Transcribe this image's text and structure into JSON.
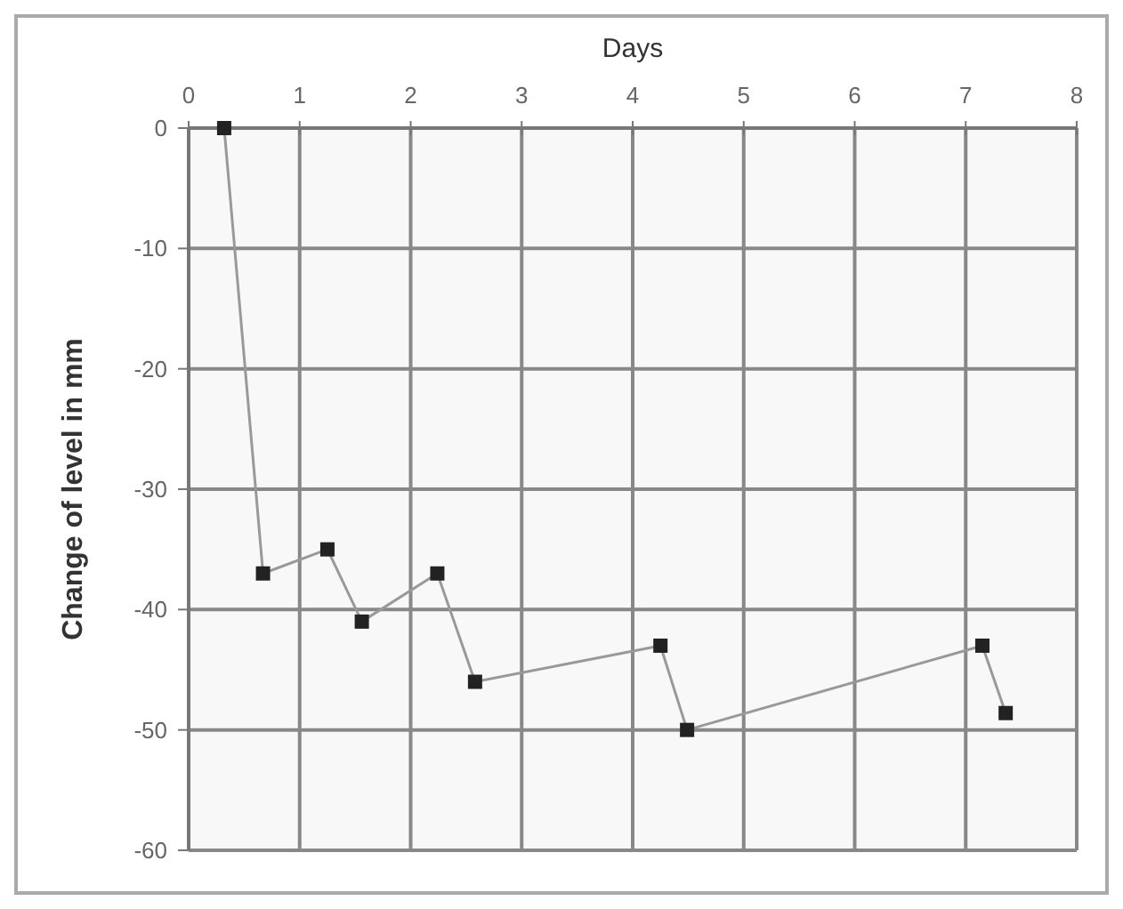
{
  "chart_data": {
    "type": "line",
    "xlabel": "Days",
    "ylabel": "Change of level in mm",
    "x": [
      0.32,
      0.67,
      1.25,
      1.56,
      2.24,
      2.58,
      4.25,
      4.49,
      7.15,
      7.36
    ],
    "series": [
      {
        "color": "#999999",
        "values": [
          0,
          -37,
          -35,
          -41,
          -37,
          -46,
          -43,
          -50,
          -43,
          -48.6
        ]
      }
    ],
    "xlim": [
      0,
      8
    ],
    "xticks": [
      0,
      1,
      2,
      3,
      4,
      5,
      6,
      7,
      8
    ],
    "ylim": [
      -60,
      0
    ],
    "yticks": [
      0,
      -10,
      -20,
      -30,
      -40,
      -50,
      -60
    ],
    "grid": true,
    "marker": "square",
    "line_style": "solid"
  }
}
